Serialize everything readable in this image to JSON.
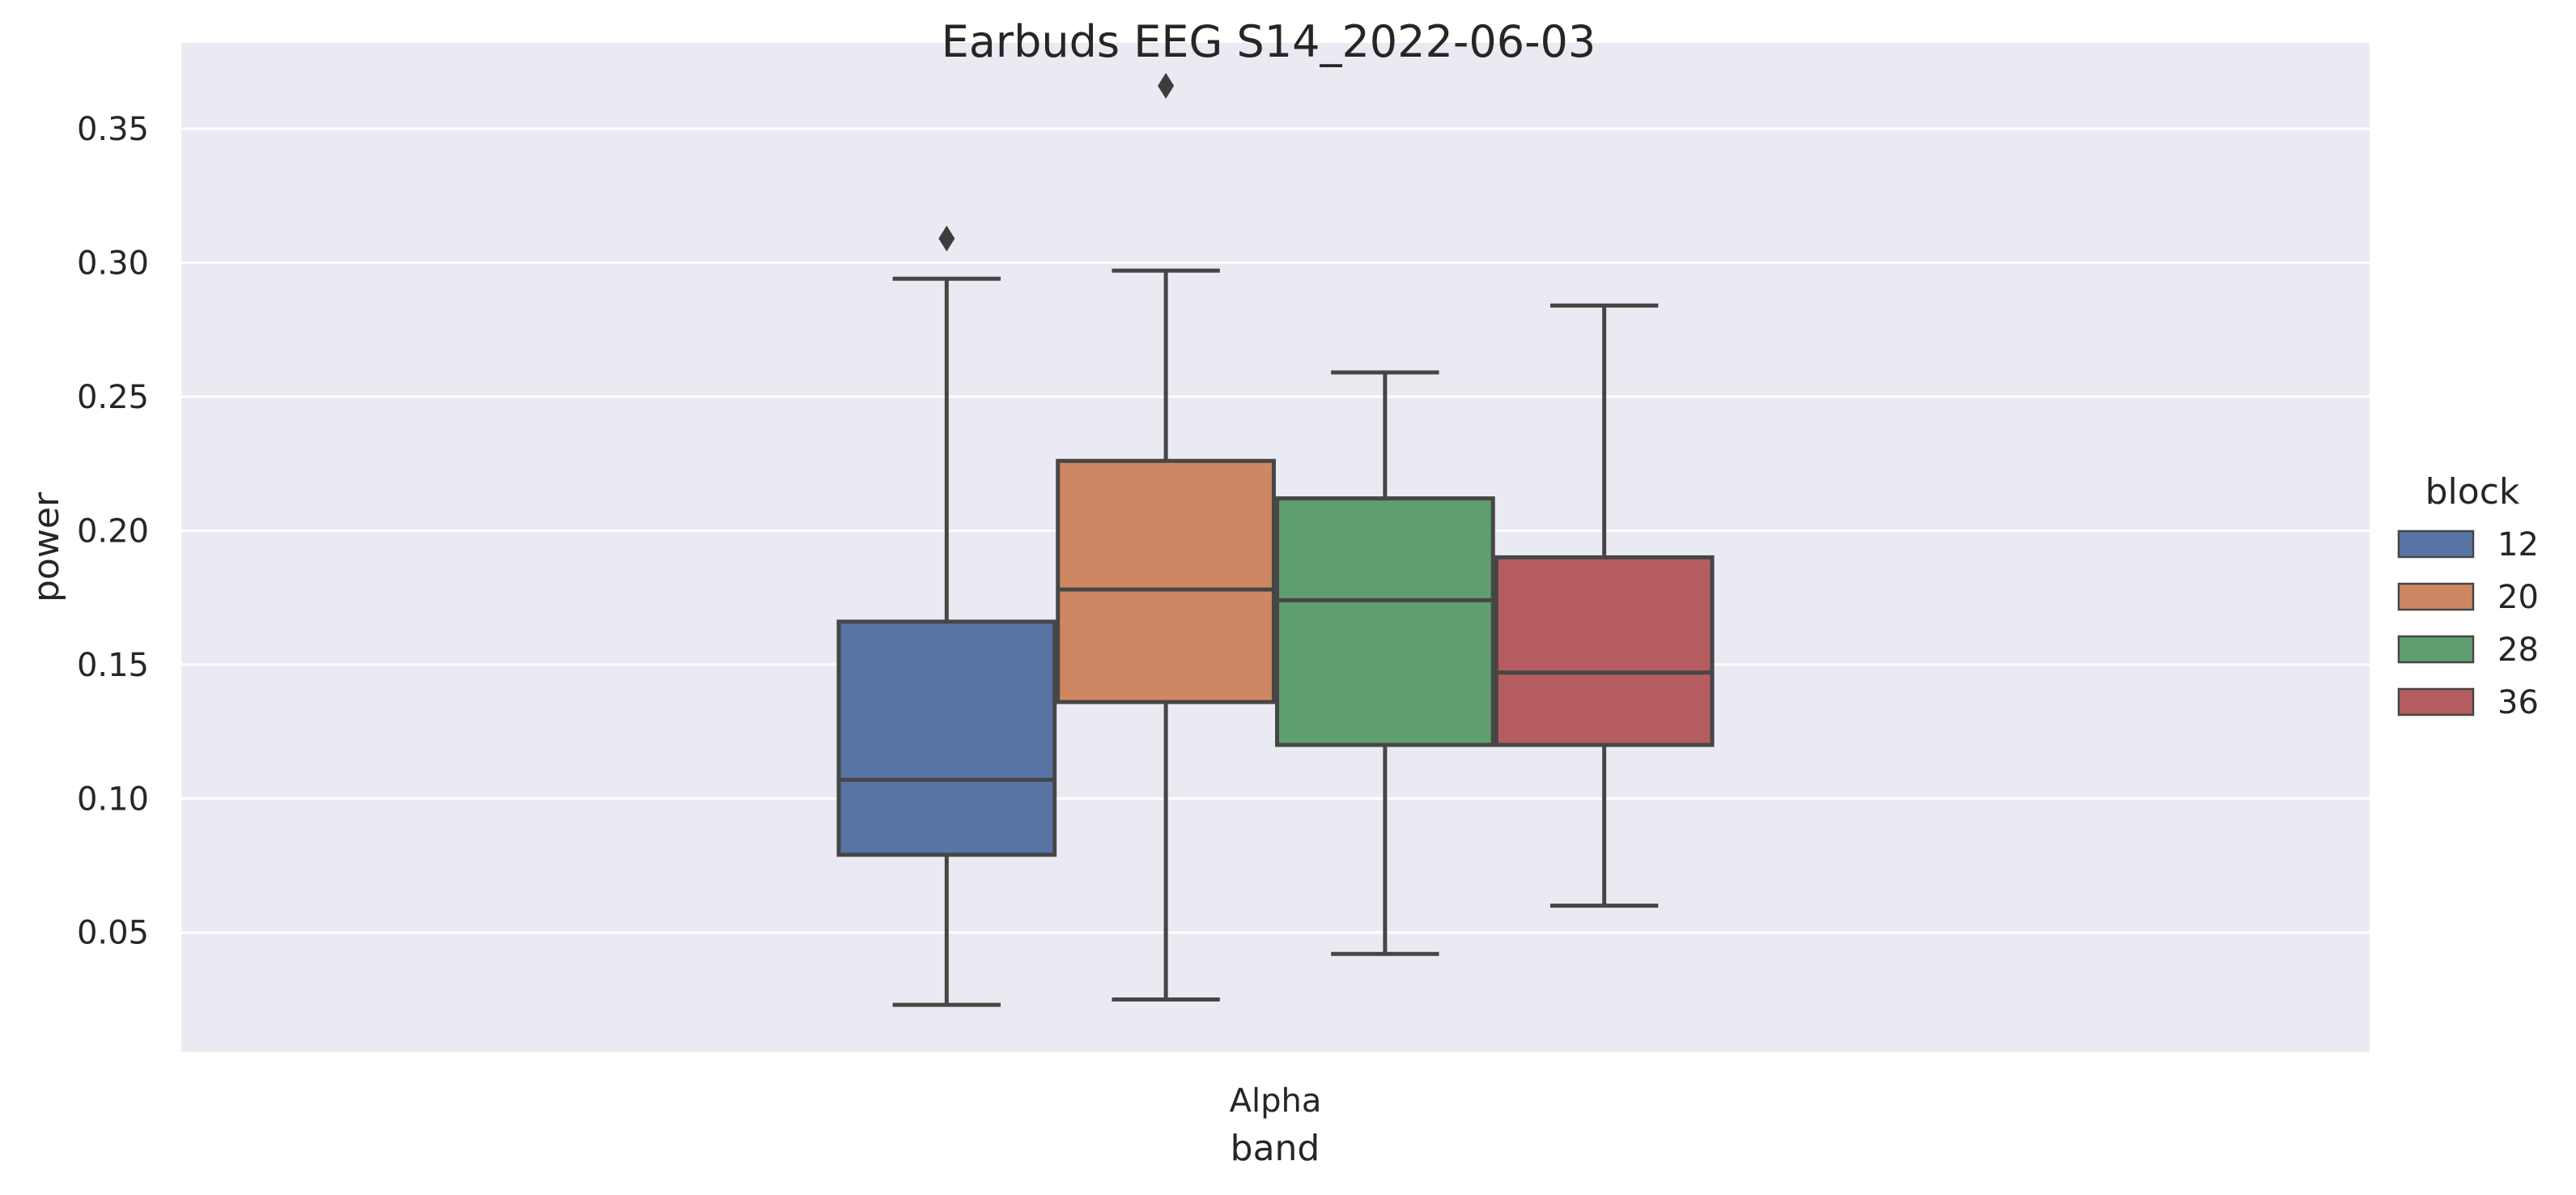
{
  "chart_data": {
    "type": "box",
    "title": "Earbuds EEG S14_2022-06-03",
    "xlabel": "band",
    "ylabel": "power",
    "categories": [
      "Alpha"
    ],
    "ylim": [
      0.0055,
      0.382
    ],
    "yticks": [
      0.05,
      0.1,
      0.15,
      0.2,
      0.25,
      0.3,
      0.35
    ],
    "ytick_labels": [
      "0.05",
      "0.10",
      "0.15",
      "0.20",
      "0.25",
      "0.30",
      "0.35"
    ],
    "grid": true,
    "legend": {
      "title": "block",
      "placement": "right"
    },
    "series": [
      {
        "name": "12",
        "color": "#5874a5",
        "category": "Alpha",
        "min": 0.023,
        "q1": 0.079,
        "median": 0.107,
        "q3": 0.166,
        "max": 0.294,
        "outliers": [
          0.309
        ]
      },
      {
        "name": "20",
        "color": "#cd8863",
        "category": "Alpha",
        "min": 0.025,
        "q1": 0.136,
        "median": 0.178,
        "q3": 0.226,
        "max": 0.297,
        "outliers": [
          0.366
        ]
      },
      {
        "name": "28",
        "color": "#5f9f6f",
        "category": "Alpha",
        "min": 0.042,
        "q1": 0.12,
        "median": 0.174,
        "q3": 0.212,
        "max": 0.259,
        "outliers": []
      },
      {
        "name": "36",
        "color": "#b55c60",
        "category": "Alpha",
        "min": 0.06,
        "q1": 0.12,
        "median": 0.147,
        "q3": 0.19,
        "max": 0.284,
        "outliers": []
      }
    ]
  }
}
